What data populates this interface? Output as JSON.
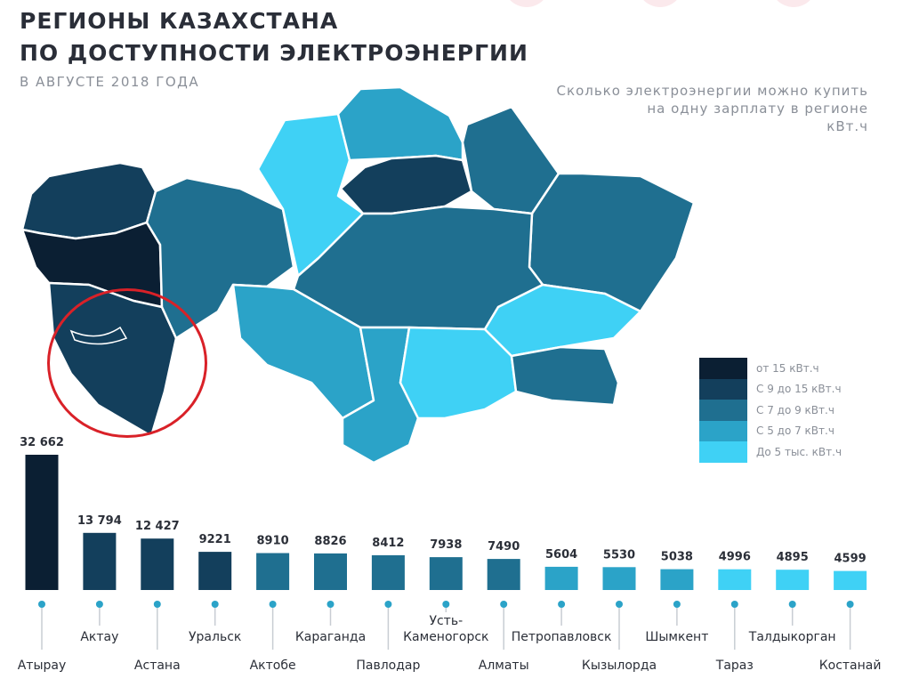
{
  "title_lines": [
    "РЕГИОНЫ КАЗАХСТАНА",
    "ПО ДОСТУПНОСТИ ЭЛЕКТРОЭНЕРГИИ"
  ],
  "subtitle": "В АВГУСТЕ 2018 ГОДА",
  "note_lines": [
    "Сколько электроэнергии можно купить",
    "на одну зарплату в регионе",
    "кВт.ч"
  ],
  "legend": [
    {
      "label": "от 15 кВт.ч",
      "color": "#0b1f33"
    },
    {
      "label": "С 9 до 15 кВт.ч",
      "color": "#133f5c"
    },
    {
      "label": "С 7 до 9 кВт.ч",
      "color": "#1f6f90"
    },
    {
      "label": "С 5 до 7 кВт.ч",
      "color": "#2ba3c8"
    },
    {
      "label": "До 5 тыс. кВт.ч",
      "color": "#3fd1f5"
    }
  ],
  "chart_data": {
    "type": "bar",
    "categories": [
      "Атырау",
      "Актау",
      "Астана",
      "Уральск",
      "Актобе",
      "Караганда",
      "Павлодар",
      "Усть-Каменогорск",
      "Алматы",
      "Петропавловск",
      "Кызылорда",
      "Шымкент",
      "Тараз",
      "Талдыкорган",
      "Костанай"
    ],
    "category_lines": [
      [
        "Атырау"
      ],
      [
        "Актау"
      ],
      [
        "Астана"
      ],
      [
        "Уральск"
      ],
      [
        "Актобе"
      ],
      [
        "Караганда"
      ],
      [
        "Павлодар"
      ],
      [
        "Усть-",
        "Каменогорск"
      ],
      [
        "Алматы"
      ],
      [
        "Петропавловск"
      ],
      [
        "Кызылорда"
      ],
      [
        "Шымкент"
      ],
      [
        "Тараз"
      ],
      [
        "Талдыкорган"
      ],
      [
        "Костанай"
      ]
    ],
    "values": [
      32662,
      13794,
      12427,
      9221,
      8910,
      8826,
      8412,
      7938,
      7490,
      5604,
      5530,
      5038,
      4996,
      4895,
      4599
    ],
    "value_labels": [
      "32 662",
      "13 794",
      "12 427",
      "9221",
      "8910",
      "8826",
      "8412",
      "7938",
      "7490",
      "5604",
      "5530",
      "5038",
      "4996",
      "4895",
      "4599"
    ],
    "colors": [
      "#0b1f33",
      "#133f5c",
      "#133f5c",
      "#133f5c",
      "#1f6f90",
      "#1f6f90",
      "#1f6f90",
      "#1f6f90",
      "#1f6f90",
      "#2ba3c8",
      "#2ba3c8",
      "#2ba3c8",
      "#3fd1f5",
      "#3fd1f5",
      "#3fd1f5"
    ],
    "ylim": [
      0,
      32662
    ]
  },
  "map": {
    "region_colors": {
      "atyrau": "#0b1f33",
      "west": "#133f5c",
      "mangystau": "#133f5c",
      "aktobe": "#1f6f90",
      "kostanay": "#3fd1f5",
      "north": "#2ba3c8",
      "pavlodar": "#1f6f90",
      "astana": "#133f5c",
      "karaganda": "#1f6f90",
      "east": "#1f6f90",
      "kyzylorda": "#2ba3c8",
      "turkestan": "#2ba3c8",
      "zhambyl": "#3fd1f5",
      "taldykorgan": "#3fd1f5",
      "almaty": "#1f6f90"
    },
    "highlight_color": "#d92128"
  }
}
